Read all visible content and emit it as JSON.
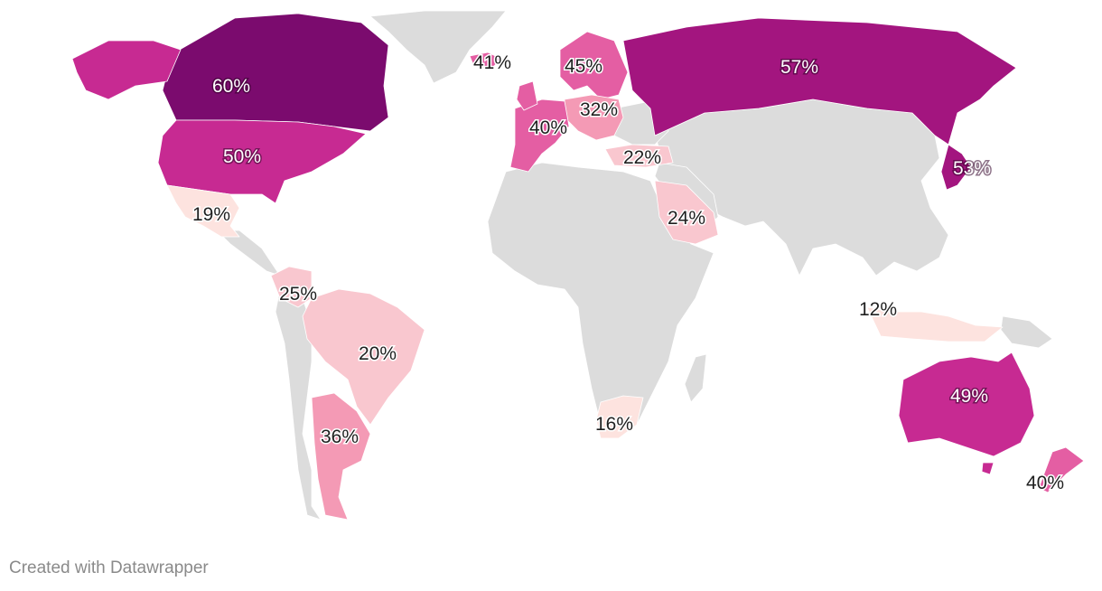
{
  "credit": "Created with Datawrapper",
  "colors": {
    "nodata": "#dcdcdc",
    "scale": [
      "#fde3df",
      "#f9c7cf",
      "#f49ab5",
      "#e45ea3",
      "#c72a92",
      "#a3157f",
      "#7b0b6e"
    ]
  },
  "regions": [
    {
      "id": "canada",
      "label": "60%",
      "value": 60
    },
    {
      "id": "united-states",
      "label": "50%",
      "value": 50
    },
    {
      "id": "mexico",
      "label": "19%",
      "value": 19
    },
    {
      "id": "iceland",
      "label": "41%",
      "value": 41
    },
    {
      "id": "nordics",
      "label": "45%",
      "value": 45
    },
    {
      "id": "russia",
      "label": "57%",
      "value": 57
    },
    {
      "id": "central-europe",
      "label": "32%",
      "value": 32
    },
    {
      "id": "western-europe",
      "label": "40%",
      "value": 40
    },
    {
      "id": "turkey",
      "label": "22%",
      "value": 22
    },
    {
      "id": "japan",
      "label": "53%",
      "value": 53
    },
    {
      "id": "saudi-arabia",
      "label": "24%",
      "value": 24
    },
    {
      "id": "colombia",
      "label": "25%",
      "value": 25
    },
    {
      "id": "brazil",
      "label": "20%",
      "value": 20
    },
    {
      "id": "argentina",
      "label": "36%",
      "value": 36
    },
    {
      "id": "south-africa",
      "label": "16%",
      "value": 16
    },
    {
      "id": "indonesia",
      "label": "12%",
      "value": 12
    },
    {
      "id": "australia",
      "label": "49%",
      "value": 49
    },
    {
      "id": "new-zealand",
      "label": "40%",
      "value": 40
    }
  ]
}
